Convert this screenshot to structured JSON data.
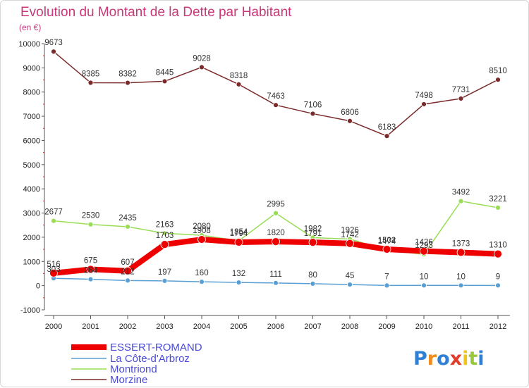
{
  "chart_data": {
    "type": "line",
    "title": "Evolution du Montant de la Dette par Habitant",
    "subtitle": "(en €)",
    "x": [
      "2000",
      "2001",
      "2002",
      "2003",
      "2004",
      "2005",
      "2006",
      "2007",
      "2008",
      "2009",
      "2010",
      "2011",
      "2012"
    ],
    "ylim": [
      -1000,
      10000
    ],
    "yticks": [
      -1000,
      0,
      1000,
      2000,
      3000,
      4000,
      5000,
      6000,
      7000,
      8000,
      9000,
      10000
    ],
    "grid": false,
    "legend_position": "bottom-left",
    "series": [
      {
        "name": "ESSERT-ROMAND",
        "color": "#ee0000",
        "values": [
          516,
          675,
          607,
          1703,
          1908,
          1794,
          1820,
          1791,
          1742,
          1502,
          1426,
          1373,
          1310
        ],
        "labels": [
          "516",
          "675",
          "607",
          "1703",
          "1908",
          "1794",
          "1820",
          "1791",
          "1742",
          "1502",
          "1426",
          "1373",
          "1310"
        ]
      },
      {
        "name": "La Côte-d'Arbroz",
        "color": "#5a9fd4",
        "values": [
          303,
          264,
          212,
          197,
          160,
          132,
          111,
          80,
          45,
          7,
          10,
          10,
          9
        ],
        "labels": [
          "303",
          "264",
          "212",
          "197",
          "160",
          "132",
          "111",
          "80",
          "45",
          "7",
          "10",
          "10",
          "9"
        ]
      },
      {
        "name": "Montriond",
        "color": "#99dd55",
        "values": [
          2677,
          2530,
          2435,
          2163,
          2080,
          1854,
          2995,
          1982,
          1926,
          1474,
          1293,
          3492,
          3221
        ],
        "labels": [
          "2677",
          "2530",
          "2435",
          "2163",
          "2080",
          "1854",
          "2995",
          "1982",
          "1926",
          "1474",
          "1293",
          "3492",
          "3221"
        ]
      },
      {
        "name": "Morzine",
        "color": "#7a2a2a",
        "values": [
          9673,
          8385,
          8382,
          8445,
          9028,
          8318,
          7463,
          7106,
          6806,
          6183,
          7498,
          7731,
          8510
        ],
        "labels": [
          "9673",
          "8385",
          "8382",
          "8445",
          "9028",
          "8318",
          "7463",
          "7106",
          "6806",
          "6183",
          "7498",
          "7731",
          "8510"
        ]
      }
    ]
  },
  "brand": {
    "letters": [
      "P",
      "r",
      "o",
      "x",
      "i",
      "t",
      "i"
    ],
    "colors": [
      "#2f7fd6",
      "#f28c1e",
      "#2f7fd6",
      "#e43b2a",
      "#f2c418",
      "#9ac83a",
      "#2f7fd6"
    ]
  }
}
